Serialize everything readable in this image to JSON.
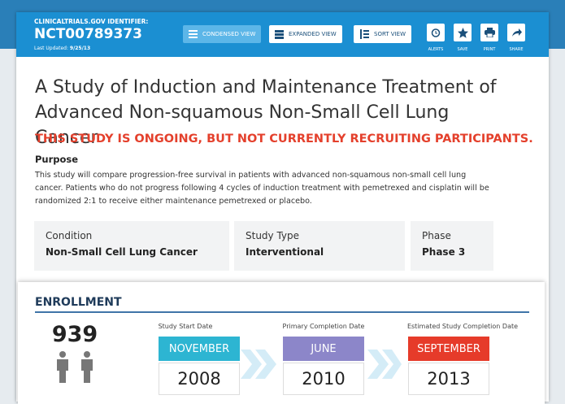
{
  "header": {
    "id_label": "CLINICALTRIALS.GOV IDENTIFIER:",
    "id": "NCT00789373",
    "updated_label": "Last Updated:",
    "updated": "9/25/13",
    "views": [
      "CONDENSED VIEW",
      "EXPANDED VIEW",
      "SORT VIEW"
    ],
    "actions": [
      "ALERTS",
      "SAVE",
      "PRINT",
      "SHARE"
    ]
  },
  "title": "A Study of Induction and Maintenance Treatment of Advanced Non-squamous Non-Small Cell Lung Cancer",
  "status": "THIS STUDY IS ONGOING, BUT NOT CURRENTLY RECRUITING PARTICIPANTS.",
  "purpose": {
    "heading": "Purpose",
    "text": "This study will compare progression-free survival in patients with advanced non-squamous non-small cell lung cancer. Patients who do not progress following 4 cycles of induction treatment with pemetrexed and cisplatin will be randomized 2:1 to receive either maintenance pemetrexed or placebo."
  },
  "facts": [
    {
      "label": "Condition",
      "value": "Non-Small Cell Lung Cancer"
    },
    {
      "label": "Study Type",
      "value": "Interventional"
    },
    {
      "label": "Phase",
      "value": "Phase 3"
    }
  ],
  "enrollment": {
    "heading": "ENROLLMENT",
    "count": "939",
    "dates": [
      {
        "label": "Study Start Date",
        "month": "NOVEMBER",
        "year": "2008"
      },
      {
        "label": "Primary Completion Date",
        "month": "JUNE",
        "year": "2010"
      },
      {
        "label": "Estimated Study Completion Date",
        "month": "SEPTEMBER",
        "year": "2013"
      }
    ]
  }
}
